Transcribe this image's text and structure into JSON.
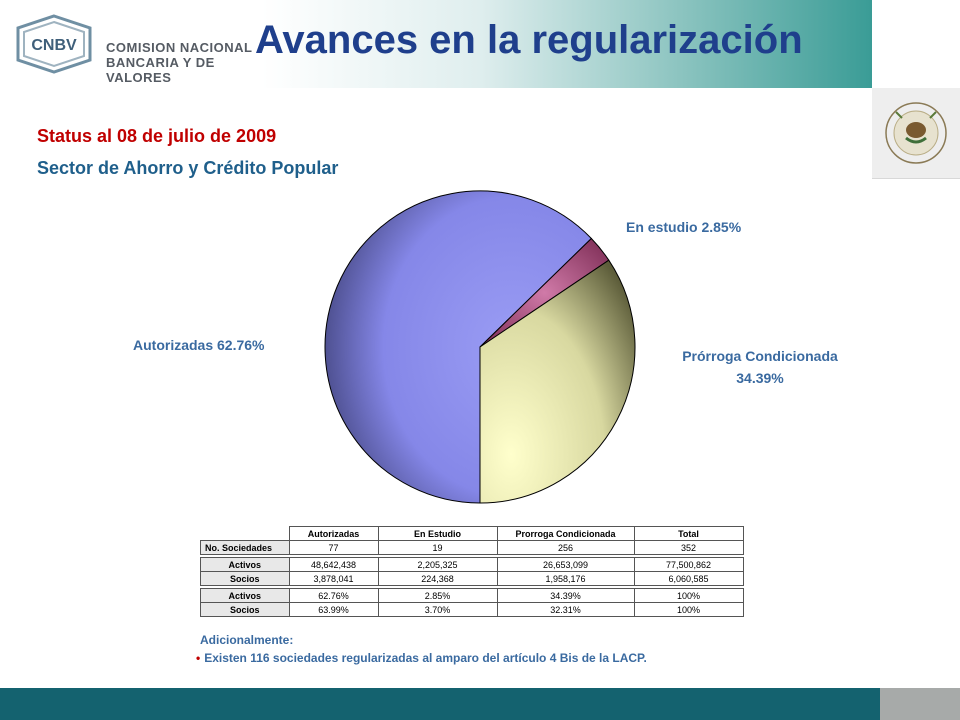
{
  "header": {
    "logo_abbr": "CNBV",
    "logo_line1": "COMISION NACIONAL",
    "logo_line2": "BANCARIA Y DE VALORES",
    "title": "Avances en la regularización",
    "seal_text": "ESTADOS UNIDOS MEXICANOS"
  },
  "subtitle": {
    "status": "Status al 08 de julio de 2009",
    "sector": "Sector de Ahorro y Crédito Popular"
  },
  "chart_data": {
    "type": "pie",
    "title": "",
    "slices": [
      {
        "label": "Autorizadas",
        "value": 62.76,
        "text": "Autorizadas  62.76%",
        "color": "#9a9cf4"
      },
      {
        "label": "En estudio",
        "value": 2.85,
        "text": "En estudio  2.85%",
        "color": "#b84f83"
      },
      {
        "label": "Prórroga Condicionada",
        "value": 34.39,
        "text": "Prórroga  Condicionada",
        "text2": "34.39%",
        "color": "#ececb9"
      }
    ]
  },
  "table": {
    "headers": [
      "",
      "Autorizadas",
      "En Estudio",
      "Prorroga Condicionada",
      "Total"
    ],
    "rows": [
      [
        "No. Sociedades",
        "77",
        "19",
        "256",
        "352"
      ],
      [
        "Activos",
        "48,642,438",
        "2,205,325",
        "26,653,099",
        "77,500,862"
      ],
      [
        "Socios",
        "3,878,041",
        "224,368",
        "1,958,176",
        "6,060,585"
      ],
      [
        "Activos",
        "62.76%",
        "2.85%",
        "34.39%",
        "100%"
      ],
      [
        "Socios",
        "63.99%",
        "3.70%",
        "32.31%",
        "100%"
      ]
    ]
  },
  "note": {
    "title": "Adicionalmente:",
    "bullet": "•",
    "item": "Existen 116 sociedades regularizadas al amparo del artículo 4 Bis de la LACP."
  },
  "colors": {
    "title": "#1f3f8c",
    "status": "#c00000",
    "sector": "#1f5f8b",
    "footer": "#14626f",
    "footer_right": "#a7aaa9"
  }
}
